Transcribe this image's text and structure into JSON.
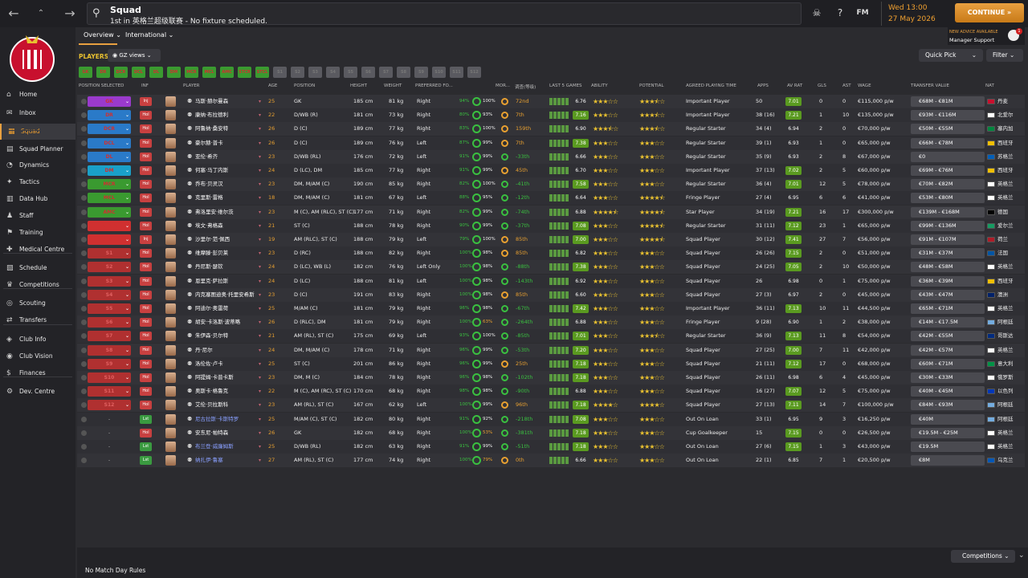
{
  "topbar": {
    "title": "Squad",
    "subtitle": "1st in 英格兰超级联赛 - No fixture scheduled.",
    "date_time": "Wed 13:00",
    "date": "27 May 2026",
    "continue": "CONTINUE",
    "fm": "FM"
  },
  "manager_support": {
    "advice": "NEW ADVICE AVAILABLE",
    "label": "Manager Support",
    "count": "1"
  },
  "sidebar": [
    {
      "label": "Home",
      "icon": "home-icon"
    },
    {
      "label": "Inbox",
      "icon": "inbox-icon"
    },
    {
      "label": "Squad",
      "icon": "squad-icon",
      "active": true
    },
    {
      "label": "Squad Planner",
      "icon": "planner-icon"
    },
    {
      "label": "Dynamics",
      "icon": "dynamics-icon"
    },
    {
      "label": "Tactics",
      "icon": "tactics-icon"
    },
    {
      "label": "Data Hub",
      "icon": "data-hub-icon"
    },
    {
      "label": "Staff",
      "icon": "staff-icon"
    },
    {
      "label": "Training",
      "icon": "training-icon"
    },
    {
      "label": "Medical Centre",
      "icon": "medical-icon"
    },
    {
      "label": "Schedule",
      "icon": "schedule-icon"
    },
    {
      "label": "Competitions",
      "icon": "trophy-icon"
    },
    {
      "label": "Scouting",
      "icon": "scouting-icon"
    },
    {
      "label": "Transfers",
      "icon": "transfers-icon"
    },
    {
      "label": "Club Info",
      "icon": "club-info-icon"
    },
    {
      "label": "Club Vision",
      "icon": "club-vision-icon"
    },
    {
      "label": "Finances",
      "icon": "finances-icon"
    },
    {
      "label": "Dev. Centre",
      "icon": "dev-centre-icon"
    }
  ],
  "tabs": [
    "Overview",
    "International"
  ],
  "players_label": "PLAYERS",
  "views_label": "GZ views",
  "quick_pick": "Quick Pick",
  "filter": "Filter",
  "position_chips": [
    "GK",
    "DR",
    "DCR",
    "DCL",
    "DL",
    "DM",
    "MCR",
    "MCL",
    "AMC",
    "STCR",
    "STCL",
    "S1",
    "S2",
    "S3",
    "S4",
    "S5",
    "S6",
    "S7",
    "S8",
    "S9",
    "S10",
    "S11",
    "S12"
  ],
  "columns": [
    "POSITION SELECTED",
    "INF",
    "PLAYER",
    "AGE",
    "POSITION",
    "HEIGHT",
    "WEIGHT",
    "PREFERRED FO...",
    "MOR...",
    "调查(等级)",
    "LAST 5 GAMES",
    "ABILITY",
    "POTENTIAL",
    "AGREED PLAYING TIME",
    "APPS",
    "AV RAT",
    "GLS",
    "AST",
    "WAGE",
    "TRANSFER VALUE",
    "NAT"
  ],
  "players": [
    {
      "pos": "GK",
      "pc": "#9a3acc",
      "inf": "Inj",
      "name": "马斯·赫尔曼森",
      "age": "25",
      "position": "GK",
      "height": "185 cm",
      "weight": "81 kg",
      "foot": "Right",
      "fit": "94%",
      "cond": "100%",
      "rec": "72nd",
      "rating": "6.76",
      "abil": 3,
      "pot": 3.5,
      "time": "Important Player",
      "apps": "50",
      "avrat": "7.01",
      "gls": "0",
      "ast": "0",
      "wage": "€115,000 p/w",
      "tv": "€68M - €81M",
      "nat": "丹麦",
      "fc": "#c8102e"
    },
    {
      "pos": "DR",
      "pc": "#2a7ac8",
      "inf": "Hol",
      "name": "康纳·布拉德利",
      "age": "22",
      "position": "D/WB (R)",
      "height": "181 cm",
      "weight": "73 kg",
      "foot": "Right",
      "fit": "80%",
      "cond": "93%",
      "rec": "7th",
      "rating": "7.16",
      "abil": 3,
      "pot": 3.5,
      "time": "Important Player",
      "apps": "38 (16)",
      "avrat": "7.21",
      "gls": "1",
      "ast": "10",
      "wage": "€135,000 p/w",
      "tv": "€93M - €116M",
      "nat": "北爱尔",
      "fc": "#ffffff"
    },
    {
      "pos": "DCR",
      "pc": "#2a7ac8",
      "inf": "Hol",
      "name": "阿鲁纳·桑安特",
      "age": "26",
      "position": "D (C)",
      "height": "189 cm",
      "weight": "77 kg",
      "foot": "Right",
      "fit": "83%",
      "cond": "100%",
      "rec": "159th",
      "rating": "6.90",
      "abil": 3.5,
      "pot": 3.5,
      "time": "Regular Starter",
      "apps": "34 (4)",
      "avrat": "6.94",
      "gls": "2",
      "ast": "0",
      "wage": "€70,000 p/w",
      "tv": "€50M - €55M",
      "nat": "塞内加",
      "fc": "#00853f"
    },
    {
      "pos": "DCL",
      "pc": "#2a7ac8",
      "inf": "Hol",
      "name": "豪尔赫·普卡",
      "age": "26",
      "position": "D (C)",
      "height": "189 cm",
      "weight": "76 kg",
      "foot": "Left",
      "fit": "87%",
      "cond": "99%",
      "rec": "7th",
      "rating": "7.38",
      "abil": 3,
      "pot": 3,
      "time": "Regular Starter",
      "apps": "39 (1)",
      "avrat": "6.93",
      "gls": "1",
      "ast": "0",
      "wage": "€65,000 p/w",
      "tv": "€66M - €78M",
      "nat": "西班牙",
      "fc": "#f1bf00"
    },
    {
      "pos": "DL",
      "pc": "#2a7ac8",
      "inf": "Hol",
      "name": "亚伦·希齐",
      "age": "23",
      "position": "D/WB (RL)",
      "height": "176 cm",
      "weight": "72 kg",
      "foot": "Left",
      "fit": "91%",
      "cond": "99%",
      "rec": "-33th",
      "rating": "6.66",
      "abil": 3,
      "pot": 3,
      "time": "Regular Starter",
      "apps": "35 (9)",
      "avrat": "6.93",
      "gls": "2",
      "ast": "8",
      "wage": "€67,000 p/w",
      "tv": "€0",
      "nat": "苏格兰",
      "fc": "#005eb8"
    },
    {
      "pos": "DM",
      "pc": "#1aa0c8",
      "inf": "Hol",
      "name": "何塞·马丁内斯",
      "age": "24",
      "position": "D (LC), DM",
      "height": "185 cm",
      "weight": "77 kg",
      "foot": "Right",
      "fit": "91%",
      "cond": "99%",
      "rec": "45th",
      "rating": "6.70",
      "abil": 3,
      "pot": 3,
      "time": "Important Player",
      "apps": "37 (13)",
      "avrat": "7.02",
      "gls": "2",
      "ast": "5",
      "wage": "€60,000 p/w",
      "tv": "€69M - €76M",
      "nat": "西班牙",
      "fc": "#f1bf00"
    },
    {
      "pos": "MCR",
      "pc": "#3a9a30",
      "inf": "Hol",
      "name": "乔布·贝灵汉",
      "age": "23",
      "position": "DM, M/AM (C)",
      "height": "190 cm",
      "weight": "85 kg",
      "foot": "Right",
      "fit": "82%",
      "cond": "100%",
      "rec": "-41th",
      "rating": "7.58",
      "abil": 3,
      "pot": 3,
      "time": "Regular Starter",
      "apps": "36 (4)",
      "avrat": "7.01",
      "gls": "12",
      "ast": "5",
      "wage": "€78,000 p/w",
      "tv": "€70M - €82M",
      "nat": "英格兰",
      "fc": "#ffffff"
    },
    {
      "pos": "MCL",
      "pc": "#3a9a30",
      "inf": "Hol",
      "name": "克里斯·雷格",
      "age": "18",
      "position": "DM, M/AM (C)",
      "height": "181 cm",
      "weight": "67 kg",
      "foot": "Left",
      "fit": "88%",
      "cond": "95%",
      "rec": "-12th",
      "rating": "6.64",
      "abil": 3,
      "pot": 4.5,
      "time": "Fringe Player",
      "apps": "27 (4)",
      "avrat": "6.95",
      "gls": "6",
      "ast": "6",
      "wage": "€41,000 p/w",
      "tv": "€53M - €80M",
      "nat": "英格兰",
      "fc": "#ffffff"
    },
    {
      "pos": "AMC",
      "pc": "#3a9a30",
      "inf": "Hol",
      "name": "弗洛里安·维尔茨",
      "age": "23",
      "position": "M (C), AM (RLC), ST (C)",
      "height": "177 cm",
      "weight": "71 kg",
      "foot": "Right",
      "fit": "82%",
      "cond": "99%",
      "rec": "-74th",
      "rating": "6.88",
      "abil": 4.5,
      "pot": 4.5,
      "time": "Star Player",
      "apps": "34 (19)",
      "avrat": "7.21",
      "gls": "16",
      "ast": "17",
      "wage": "€300,000 p/w",
      "tv": "€139M - €168M",
      "nat": "德国",
      "fc": "#000000"
    },
    {
      "pos": "STCR",
      "pc": "#d03030",
      "inf": "Hol",
      "name": "埃文·弗格森",
      "age": "21",
      "position": "ST (C)",
      "height": "188 cm",
      "weight": "78 kg",
      "foot": "Right",
      "fit": "90%",
      "cond": "99%",
      "rec": "-37th",
      "rating": "7.08",
      "abil": 3,
      "pot": 4.5,
      "time": "Regular Starter",
      "apps": "31 (11)",
      "avrat": "7.12",
      "gls": "23",
      "ast": "1",
      "wage": "€65,000 p/w",
      "tv": "€99M - €136M",
      "nat": "爱尔兰",
      "fc": "#169b62"
    },
    {
      "pos": "STCL",
      "pc": "#d03030",
      "inf": "Inj",
      "name": "沙里尔·范·佩西",
      "age": "19",
      "position": "AM (RLC), ST (C)",
      "height": "188 cm",
      "weight": "79 kg",
      "foot": "Left",
      "fit": "79%",
      "cond": "100%",
      "rec": "85th",
      "rating": "7.00",
      "abil": 3,
      "pot": 4.5,
      "time": "Squad Player",
      "apps": "30 (12)",
      "avrat": "7.41",
      "gls": "27",
      "ast": "7",
      "wage": "€56,000 p/w",
      "tv": "€91M - €107M",
      "nat": "荷兰",
      "fc": "#ae1c28"
    },
    {
      "pos": "S1",
      "pc": "#b03030",
      "inf": "Hol",
      "name": "维摩滕·彭贝莱",
      "age": "23",
      "position": "D (RC)",
      "height": "188 cm",
      "weight": "82 kg",
      "foot": "Right",
      "fit": "100%",
      "cond": "98%",
      "rec": "85th",
      "rating": "6.82",
      "abil": 3,
      "pot": 3,
      "time": "Squad Player",
      "apps": "26 (26)",
      "avrat": "7.15",
      "gls": "2",
      "ast": "0",
      "wage": "€51,000 p/w",
      "tv": "€31M - €37M",
      "nat": "法国",
      "fc": "#0055a4"
    },
    {
      "pos": "S2",
      "pc": "#b03030",
      "inf": "Hol",
      "name": "丹尼斯·瑟钦",
      "age": "24",
      "position": "D (LC), WB (L)",
      "height": "182 cm",
      "weight": "76 kg",
      "foot": "Left Only",
      "fit": "100%",
      "cond": "98%",
      "rec": "-88th",
      "rating": "7.38",
      "abil": 3,
      "pot": 3,
      "time": "Squad Player",
      "apps": "24 (25)",
      "avrat": "7.05",
      "gls": "2",
      "ast": "10",
      "wage": "€50,000 p/w",
      "tv": "€48M - €58M",
      "nat": "英格兰",
      "fc": "#ffffff"
    },
    {
      "pos": "S3",
      "pc": "#b03030",
      "inf": "Hol",
      "name": "恩里克·萨拉斯",
      "age": "24",
      "position": "D (LC)",
      "height": "188 cm",
      "weight": "81 kg",
      "foot": "Left",
      "fit": "100%",
      "cond": "98%",
      "rec": "-143th",
      "rating": "6.92",
      "abil": 3,
      "pot": 3,
      "time": "Squad Player",
      "apps": "26",
      "avrat": "6.98",
      "gls": "0",
      "ast": "1",
      "wage": "€75,000 p/w",
      "tv": "€36M - €39M",
      "nat": "西班牙",
      "fc": "#f1bf00"
    },
    {
      "pos": "S4",
      "pc": "#b03030",
      "inf": "Hol",
      "name": "内克塞图迪奥·托里安希斯",
      "age": "23",
      "position": "D (C)",
      "height": "191 cm",
      "weight": "83 kg",
      "foot": "Right",
      "fit": "100%",
      "cond": "98%",
      "rec": "85th",
      "rating": "6.60",
      "abil": 3,
      "pot": 3,
      "time": "Squad Player",
      "apps": "27 (3)",
      "avrat": "6.97",
      "gls": "2",
      "ast": "0",
      "wage": "€45,000 p/w",
      "tv": "€43M - €47M",
      "nat": "澳洲",
      "fc": "#012169"
    },
    {
      "pos": "S5",
      "pc": "#b03030",
      "inf": "Hol",
      "name": "阿迪尔·奥雷荷",
      "age": "25",
      "position": "M/AM (C)",
      "height": "181 cm",
      "weight": "79 kg",
      "foot": "Right",
      "fit": "96%",
      "cond": "98%",
      "rec": "-67th",
      "rating": "7.42",
      "abil": 3,
      "pot": 3,
      "time": "Important Player",
      "apps": "36 (11)",
      "avrat": "7.13",
      "gls": "10",
      "ast": "11",
      "wage": "€44,500 p/w",
      "tv": "€65M - €71M",
      "nat": "英格兰",
      "fc": "#ffffff"
    },
    {
      "pos": "S6",
      "pc": "#b03030",
      "inf": "Hol",
      "name": "胡安·卡洛斯·波蒂略",
      "age": "26",
      "position": "D (RLC), DM",
      "height": "181 cm",
      "weight": "79 kg",
      "foot": "Right",
      "fit": "100%",
      "cond": "63%",
      "rec": "-264th",
      "rating": "6.88",
      "abil": 3,
      "pot": 3,
      "time": "Fringe Player",
      "apps": "9 (28)",
      "avrat": "6.90",
      "gls": "1",
      "ast": "2",
      "wage": "€38,000 p/w",
      "tv": "€14M - €17.5M",
      "nat": "阿根廷",
      "fc": "#74acdf"
    },
    {
      "pos": "S7",
      "pc": "#b03030",
      "inf": "Hol",
      "name": "朱伊森·贝尔特",
      "age": "21",
      "position": "AM (RL), ST (C)",
      "height": "175 cm",
      "weight": "69 kg",
      "foot": "Left",
      "fit": "93%",
      "cond": "100%",
      "rec": "-85th",
      "rating": "7.01",
      "abil": 3,
      "pot": 3.5,
      "time": "Regular Starter",
      "apps": "36 (9)",
      "avrat": "7.13",
      "gls": "11",
      "ast": "8",
      "wage": "€54,000 p/w",
      "tv": "€42M - €55M",
      "nat": "哥斯达",
      "fc": "#002b7f"
    },
    {
      "pos": "S8",
      "pc": "#b03030",
      "inf": "Hol",
      "name": "丹·尼尔",
      "age": "24",
      "position": "DM, M/AM (C)",
      "height": "178 cm",
      "weight": "71 kg",
      "foot": "Right",
      "fit": "96%",
      "cond": "99%",
      "rec": "-53th",
      "rating": "7.20",
      "abil": 3,
      "pot": 3,
      "time": "Squad Player",
      "apps": "27 (25)",
      "avrat": "7.00",
      "gls": "7",
      "ast": "11",
      "wage": "€42,000 p/w",
      "tv": "€42M - €57M",
      "nat": "英格兰",
      "fc": "#ffffff"
    },
    {
      "pos": "S9",
      "pc": "#b03030",
      "inf": "Hol",
      "name": "洛伦佐·卢卡",
      "age": "25",
      "position": "ST (C)",
      "height": "201 cm",
      "weight": "86 kg",
      "foot": "Right",
      "fit": "96%",
      "cond": "99%",
      "rec": "25th",
      "rating": "7.18",
      "abil": 3,
      "pot": 3,
      "time": "Squad Player",
      "apps": "21 (11)",
      "avrat": "7.12",
      "gls": "17",
      "ast": "0",
      "wage": "€68,000 p/w",
      "tv": "€60M - €71M",
      "nat": "意大利",
      "fc": "#009246"
    },
    {
      "pos": "S10",
      "pc": "#b03030",
      "inf": "Hol",
      "name": "阿提姆·卡普卡斯",
      "age": "23",
      "position": "DM, M (C)",
      "height": "184 cm",
      "weight": "78 kg",
      "foot": "Right",
      "fit": "96%",
      "cond": "98%",
      "rec": "-102th",
      "rating": "7.18",
      "abil": 3,
      "pot": 3,
      "time": "Squad Player",
      "apps": "26 (11)",
      "avrat": "6.98",
      "gls": "6",
      "ast": "4",
      "wage": "€45,000 p/w",
      "tv": "€30M - €33M",
      "nat": "俄罗斯",
      "fc": "#ffffff"
    },
    {
      "pos": "S11",
      "pc": "#b03030",
      "inf": "Hol",
      "name": "奥斯卡·格鲁克",
      "age": "22",
      "position": "M (C), AM (RC), ST (C)",
      "height": "170 cm",
      "weight": "68 kg",
      "foot": "Right",
      "fit": "98%",
      "cond": "98%",
      "rec": "-90th",
      "rating": "6.88",
      "abil": 3,
      "pot": 3,
      "time": "Squad Player",
      "apps": "16 (27)",
      "avrat": "7.07",
      "gls": "12",
      "ast": "5",
      "wage": "€75,000 p/w",
      "tv": "€40M - €45M",
      "nat": "以色列",
      "fc": "#0038b8"
    },
    {
      "pos": "S12",
      "pc": "#b03030",
      "inf": "Hol",
      "name": "艾伦·贝拉斯科",
      "age": "23",
      "position": "AM (RL), ST (C)",
      "height": "167 cm",
      "weight": "62 kg",
      "foot": "Left",
      "fit": "100%",
      "cond": "99%",
      "rec": "96th",
      "rating": "7.18",
      "abil": 4,
      "pot": 4,
      "time": "Squad Player",
      "apps": "27 (13)",
      "avrat": "7.11",
      "gls": "14",
      "ast": "7",
      "wage": "€100,000 p/w",
      "tv": "€84M - €93M",
      "nat": "阿根廷",
      "fc": "#74acdf"
    },
    {
      "pos": "-",
      "pc": "",
      "inf": "Lst",
      "name": "尼古拉斯·卡斯特罗",
      "age": "25",
      "position": "M/AM (C), ST (C)",
      "height": "182 cm",
      "weight": "80 kg",
      "foot": "Right",
      "fit": "91%",
      "cond": "92%",
      "rec": "-218th",
      "rating": "7.08",
      "abil": 3,
      "pot": 3,
      "time": "Out On Loan",
      "apps": "33 (1)",
      "avrat": "6.95",
      "gls": "9",
      "ast": "3",
      "wage": "€16,250 p/w",
      "tv": "€40M",
      "nat": "阿根廷",
      "fc": "#74acdf",
      "loan": true
    },
    {
      "pos": "-",
      "pc": "",
      "inf": "Hol",
      "name": "安东尼·帕特森",
      "age": "26",
      "position": "GK",
      "height": "182 cm",
      "weight": "68 kg",
      "foot": "Right",
      "fit": "100%",
      "cond": "53%",
      "rec": "-381th",
      "rating": "7.18",
      "abil": 3,
      "pot": 3,
      "time": "Cup Goalkeeper",
      "apps": "15",
      "avrat": "7.15",
      "gls": "0",
      "ast": "0",
      "wage": "€26,500 p/w",
      "tv": "€19.5M - €25M",
      "nat": "英格兰",
      "fc": "#ffffff"
    },
    {
      "pos": "-",
      "pc": "",
      "inf": "Lst",
      "name": "布兰登·威廉姆斯",
      "age": "25",
      "position": "D/WB (RL)",
      "height": "182 cm",
      "weight": "63 kg",
      "foot": "Right",
      "fit": "91%",
      "cond": "99%",
      "rec": "-51th",
      "rating": "7.18",
      "abil": 3,
      "pot": 3,
      "time": "Out On Loan",
      "apps": "27 (6)",
      "avrat": "7.15",
      "gls": "1",
      "ast": "3",
      "wage": "€43,000 p/w",
      "tv": "€19.5M",
      "nat": "英格兰",
      "fc": "#ffffff",
      "loan": true
    },
    {
      "pos": "-",
      "pc": "",
      "inf": "Lst",
      "name": "纳扎伊·鲁塞",
      "age": "27",
      "position": "AM (RL), ST (C)",
      "height": "177 cm",
      "weight": "74 kg",
      "foot": "Right",
      "fit": "100%",
      "cond": "79%",
      "rec": "0th",
      "rating": "6.66",
      "abil": 3,
      "pot": 3,
      "time": "Out On Loan",
      "apps": "22 (1)",
      "avrat": "6.85",
      "gls": "7",
      "ast": "1",
      "wage": "€20,500 p/w",
      "tv": "€8M",
      "nat": "乌克兰",
      "fc": "#0057b7",
      "loan": true
    }
  ],
  "bottom": {
    "competitions": "Competitions",
    "no_rules": "No Match Day Rules"
  },
  "colors": {
    "accent": "#e8a040",
    "rating_green": "#5a9a20",
    "fitness_green": "#3ac040"
  }
}
